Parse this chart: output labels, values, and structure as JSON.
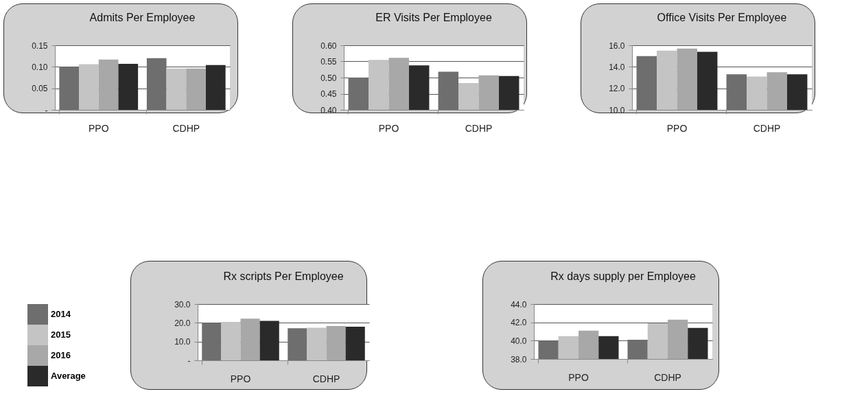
{
  "chart_data": [
    {
      "type": "bar",
      "title": "Admits Per Employee",
      "categories": [
        "PPO",
        "CDHP"
      ],
      "series": [
        {
          "color": "#6e6e6e",
          "values": [
            0.1,
            0.12
          ]
        },
        {
          "color": "#c4c4c4",
          "values": [
            0.106,
            0.096
          ]
        },
        {
          "color": "#a8a8a8",
          "values": [
            0.117,
            0.096
          ]
        },
        {
          "color": "#2a2a2a",
          "values": [
            0.107,
            0.104
          ]
        }
      ],
      "ylim": [
        0,
        0.15
      ],
      "yticks": [
        {
          "value": 0,
          "label": "-"
        },
        {
          "value": 0.05,
          "label": "0.05"
        },
        {
          "value": 0.1,
          "label": "0.10"
        },
        {
          "value": 0.15,
          "label": "0.15"
        }
      ],
      "grid": "y"
    },
    {
      "type": "bar",
      "title": "ER Visits Per Employee",
      "categories": [
        "PPO",
        "CDHP"
      ],
      "series": [
        {
          "color": "#6e6e6e",
          "values": [
            0.5,
            0.518
          ]
        },
        {
          "color": "#c4c4c4",
          "values": [
            0.555,
            0.483
          ]
        },
        {
          "color": "#a8a8a8",
          "values": [
            0.561,
            0.507
          ]
        },
        {
          "color": "#2a2a2a",
          "values": [
            0.538,
            0.505
          ]
        }
      ],
      "ylim": [
        0.4,
        0.6
      ],
      "yticks": [
        {
          "value": 0.4,
          "label": "0.40"
        },
        {
          "value": 0.45,
          "label": "0.45"
        },
        {
          "value": 0.5,
          "label": "0.50"
        },
        {
          "value": 0.55,
          "label": "0.55"
        },
        {
          "value": 0.6,
          "label": "0.60"
        }
      ],
      "grid": "y"
    },
    {
      "type": "bar",
      "title": "Office Visits Per Employee",
      "categories": [
        "PPO",
        "CDHP"
      ],
      "series": [
        {
          "color": "#6e6e6e",
          "values": [
            15.0,
            13.3
          ]
        },
        {
          "color": "#c4c4c4",
          "values": [
            15.5,
            13.1
          ]
        },
        {
          "color": "#a8a8a8",
          "values": [
            15.7,
            13.5
          ]
        },
        {
          "color": "#2a2a2a",
          "values": [
            15.4,
            13.3
          ]
        }
      ],
      "ylim": [
        10,
        16
      ],
      "yticks": [
        {
          "value": 10,
          "label": "10.0"
        },
        {
          "value": 12,
          "label": "12.0"
        },
        {
          "value": 14,
          "label": "14.0"
        },
        {
          "value": 16,
          "label": "16.0"
        }
      ],
      "grid": "y"
    },
    {
      "type": "bar",
      "title": "Rx scripts Per Employee",
      "categories": [
        "PPO",
        "CDHP"
      ],
      "series": [
        {
          "name": "2014",
          "color": "#6e6e6e",
          "values": [
            20.0,
            17.1
          ]
        },
        {
          "name": "2015",
          "color": "#c4c4c4",
          "values": [
            20.5,
            17.4
          ]
        },
        {
          "name": "2016",
          "color": "#a8a8a8",
          "values": [
            22.2,
            18.3
          ]
        },
        {
          "name": "Average",
          "color": "#2a2a2a",
          "values": [
            21.0,
            17.9
          ]
        }
      ],
      "ylim": [
        0,
        30
      ],
      "yticks": [
        {
          "value": 0,
          "label": "-"
        },
        {
          "value": 10,
          "label": "10.0"
        },
        {
          "value": 20,
          "label": "20.0"
        },
        {
          "value": 30,
          "label": "30.0"
        }
      ],
      "grid": "y",
      "legend": "left"
    },
    {
      "type": "bar",
      "title": "Rx days supply per Employee",
      "categories": [
        "PPO",
        "CDHP"
      ],
      "series": [
        {
          "color": "#6e6e6e",
          "values": [
            40.0,
            40.1
          ]
        },
        {
          "color": "#c4c4c4",
          "values": [
            40.5,
            41.9
          ]
        },
        {
          "color": "#a8a8a8",
          "values": [
            41.1,
            42.3
          ]
        },
        {
          "color": "#2a2a2a",
          "values": [
            40.5,
            41.4
          ]
        }
      ],
      "ylim": [
        38,
        44
      ],
      "yticks": [
        {
          "value": 38,
          "label": "38.0"
        },
        {
          "value": 40,
          "label": "40.0"
        },
        {
          "value": 42,
          "label": "42.0"
        },
        {
          "value": 44,
          "label": "44.0"
        }
      ],
      "grid": "y"
    }
  ]
}
